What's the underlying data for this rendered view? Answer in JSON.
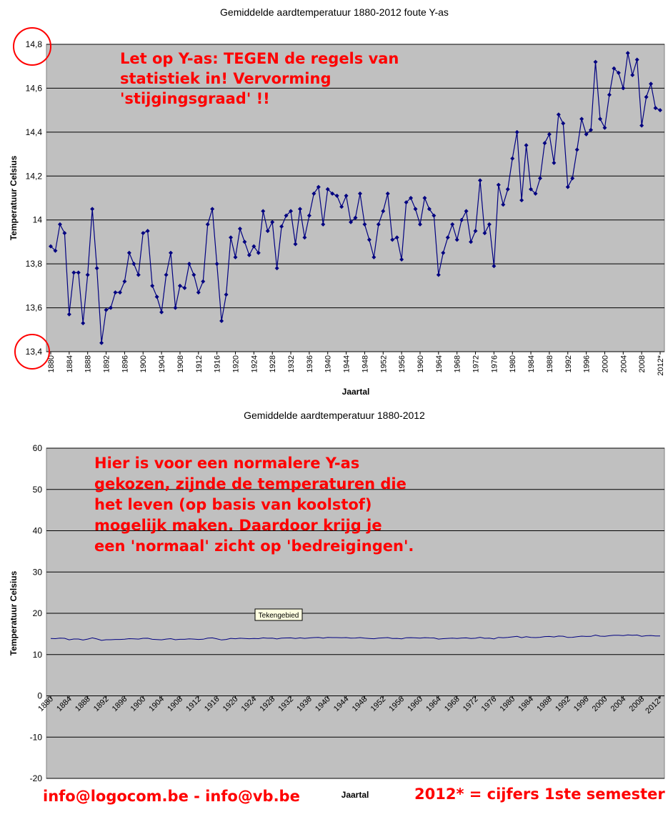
{
  "chart_data": [
    {
      "type": "line",
      "title": "Gemiddelde aardtemperatuur 1880-2012 foute Y-as",
      "xlabel": "Jaartal",
      "ylabel": "Temperatuur Celsius",
      "ylim": [
        13.4,
        14.8
      ],
      "yticks": [
        "13,4",
        "13,6",
        "13,8",
        "14",
        "14,2",
        "14,4",
        "14,6",
        "14,8"
      ],
      "ytick_values": [
        13.4,
        13.6,
        13.8,
        14.0,
        14.2,
        14.4,
        14.6,
        14.8
      ],
      "grid": true,
      "marker": "diamond",
      "line_color": "#000080",
      "plot_background": "#c0c0c0",
      "xtick_labels": [
        "1880",
        "1884",
        "1888",
        "1892",
        "1896",
        "1900",
        "1904",
        "1908",
        "1912",
        "1916",
        "1920",
        "1924",
        "1928",
        "1932",
        "1936",
        "1940",
        "1944",
        "1948",
        "1952",
        "1956",
        "1960",
        "1964",
        "1968",
        "1972",
        "1976",
        "1980",
        "1984",
        "1988",
        "1992",
        "1996",
        "2000",
        "2004",
        "2008",
        "2012*"
      ],
      "annotation": [
        "Let op Y-as: TEGEN de regels van",
        "statistiek in!  Vervorming",
        "'stijgingsgraad' !!"
      ],
      "circled_ticks": [
        "14,8",
        "13,4"
      ]
    },
    {
      "type": "line",
      "title": "Gemiddelde aardtemperatuur 1880-2012",
      "xlabel": "Jaartal",
      "ylabel": "Temperatuur Celsius",
      "ylim": [
        -20,
        60
      ],
      "yticks": [
        "-20",
        "-10",
        "0",
        "10",
        "20",
        "30",
        "40",
        "50",
        "60"
      ],
      "ytick_values": [
        -20,
        -10,
        0,
        10,
        20,
        30,
        40,
        50,
        60
      ],
      "grid": true,
      "line_color": "#000080",
      "plot_background": "#c0c0c0",
      "xtick_labels": [
        "1880",
        "1884",
        "1888",
        "1892",
        "1896",
        "1900",
        "1904",
        "1908",
        "1912",
        "1916",
        "1920",
        "1924",
        "1928",
        "1932",
        "1936",
        "1940",
        "1944",
        "1948",
        "1952",
        "1956",
        "1960",
        "1964",
        "1968",
        "1972",
        "1976",
        "1980",
        "1984",
        "1988",
        "1992",
        "1996",
        "2000",
        "2004",
        "2008",
        "2012*"
      ],
      "annotation": [
        "Hier is voor een normalere Y-as",
        "gekozen, zijnde de temperaturen die",
        "het leven (op basis van koolstof)",
        "mogelijk maken.  Daardoor krijg je",
        "een 'normaal' zicht op 'bedreigingen'."
      ],
      "tooltip": "Tekengebied"
    }
  ],
  "series": {
    "x": [
      1880,
      1881,
      1882,
      1883,
      1884,
      1885,
      1886,
      1887,
      1888,
      1889,
      1890,
      1891,
      1892,
      1893,
      1894,
      1895,
      1896,
      1897,
      1898,
      1899,
      1900,
      1901,
      1902,
      1903,
      1904,
      1905,
      1906,
      1907,
      1908,
      1909,
      1910,
      1911,
      1912,
      1913,
      1914,
      1915,
      1916,
      1917,
      1918,
      1919,
      1920,
      1921,
      1922,
      1923,
      1924,
      1925,
      1926,
      1927,
      1928,
      1929,
      1930,
      1931,
      1932,
      1933,
      1934,
      1935,
      1936,
      1937,
      1938,
      1939,
      1940,
      1941,
      1942,
      1943,
      1944,
      1945,
      1946,
      1947,
      1948,
      1949,
      1950,
      1951,
      1952,
      1953,
      1954,
      1955,
      1956,
      1957,
      1958,
      1959,
      1960,
      1961,
      1962,
      1963,
      1964,
      1965,
      1966,
      1967,
      1968,
      1969,
      1970,
      1971,
      1972,
      1973,
      1974,
      1975,
      1976,
      1977,
      1978,
      1979,
      1980,
      1981,
      1982,
      1983,
      1984,
      1985,
      1986,
      1987,
      1988,
      1989,
      1990,
      1991,
      1992,
      1993,
      1994,
      1995,
      1996,
      1997,
      1998,
      1999,
      2000,
      2001,
      2002,
      2003,
      2004,
      2005,
      2006,
      2007,
      2008,
      2009,
      2010,
      2011,
      2012
    ],
    "y": [
      13.88,
      13.86,
      13.98,
      13.94,
      13.57,
      13.76,
      13.76,
      13.53,
      13.75,
      14.05,
      13.78,
      13.44,
      13.59,
      13.6,
      13.67,
      13.67,
      13.72,
      13.85,
      13.8,
      13.75,
      13.94,
      13.95,
      13.7,
      13.65,
      13.58,
      13.75,
      13.85,
      13.6,
      13.7,
      13.69,
      13.8,
      13.75,
      13.67,
      13.72,
      13.98,
      14.05,
      13.8,
      13.54,
      13.66,
      13.92,
      13.83,
      13.96,
      13.9,
      13.84,
      13.88,
      13.85,
      14.04,
      13.95,
      13.99,
      13.78,
      13.97,
      14.02,
      14.04,
      13.89,
      14.05,
      13.92,
      14.02,
      14.12,
      14.15,
      13.98,
      14.14,
      14.12,
      14.11,
      14.06,
      14.11,
      13.99,
      14.01,
      14.12,
      13.98,
      13.91,
      13.83,
      13.98,
      14.04,
      14.12,
      13.91,
      13.92,
      13.82,
      14.08,
      14.1,
      14.05,
      13.98,
      14.1,
      14.05,
      14.02,
      13.75,
      13.85,
      13.92,
      13.98,
      13.91,
      14.0,
      14.04,
      13.9,
      13.95,
      14.18,
      13.94,
      13.98,
      13.79,
      14.16,
      14.07,
      14.14,
      14.28,
      14.4,
      14.09,
      14.34,
      14.14,
      14.12,
      14.19,
      14.35,
      14.39,
      14.26,
      14.48,
      14.44,
      14.15,
      14.19,
      14.32,
      14.46,
      14.39,
      14.41,
      14.72,
      14.46,
      14.42,
      14.57,
      14.69,
      14.67,
      14.6,
      14.76,
      14.66,
      14.73,
      14.43,
      14.56,
      14.62,
      14.51,
      14.5
    ]
  },
  "footer": {
    "email": "info@logocom.be - info@vb.be",
    "note": "2012* = cijfers 1ste semester"
  },
  "colors": {
    "plot_bg": "#c0c0c0",
    "line": "#000080",
    "annotation": "#ff0000"
  }
}
